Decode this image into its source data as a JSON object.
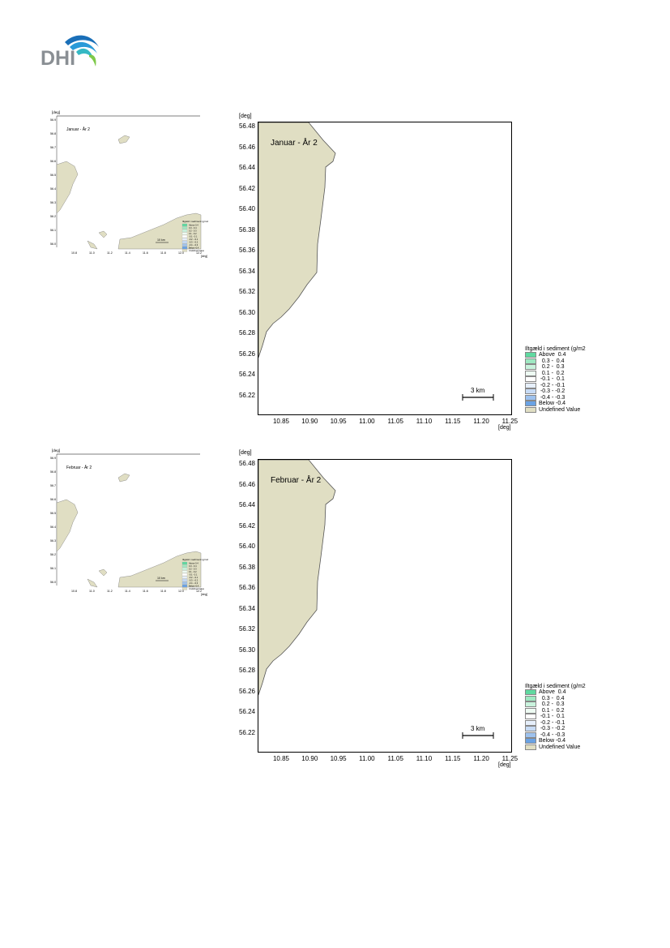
{
  "logo": {
    "text": "DHI",
    "icon": "dhi-wave-logo",
    "colors": [
      "#1a9ad6",
      "#36b3c8",
      "#7ec94a"
    ]
  },
  "land_color": "#e0dec3",
  "panels": [
    {
      "title": "Januar - År 2",
      "thumb_title": "Januar - År 2",
      "thumb_ylabel": "[deg]",
      "thumb_xlabel": "[deg]",
      "thumb_scale": "10 km",
      "ylabel": "[deg]",
      "xlabel": "[deg]",
      "yticks": [
        "56.48",
        "56.46",
        "56.44",
        "56.42",
        "56.40",
        "56.38",
        "56.36",
        "56.34",
        "56.32",
        "56.30",
        "56.28",
        "56.26",
        "56.24",
        "56.22"
      ],
      "xticks": [
        "10.85",
        "10.90",
        "10.95",
        "11.00",
        "11.05",
        "11.10",
        "11.15",
        "11.20",
        "11.25"
      ],
      "scale_label": "3 km"
    },
    {
      "title": "Februar - År 2",
      "thumb_title": "Februar - År 2",
      "thumb_ylabel": "[deg]",
      "thumb_xlabel": "[deg]",
      "thumb_scale": "10 km",
      "ylabel": "[deg]",
      "xlabel": "[deg]",
      "yticks": [
        "56.48",
        "56.46",
        "56.44",
        "56.42",
        "56.40",
        "56.38",
        "56.36",
        "56.34",
        "56.32",
        "56.30",
        "56.28",
        "56.26",
        "56.24",
        "56.22"
      ],
      "xticks": [
        "10.85",
        "10.90",
        "10.95",
        "11.00",
        "11.05",
        "11.10",
        "11.15",
        "11.20",
        "11.25"
      ],
      "scale_label": "3 km"
    }
  ],
  "legend": {
    "title": "Iltgæld i sediment (g/m2",
    "items": [
      {
        "label": "Above  0.4",
        "color": "#5fd9a0"
      },
      {
        "label": "  0.3 -  0.4",
        "color": "#9ee9c2"
      },
      {
        "label": "  0.2 -  0.3",
        "color": "#c9f3dd"
      },
      {
        "label": "  0.1 -  0.2",
        "color": "#eefbf3"
      },
      {
        "label": " -0.1 -  0.1",
        "color": "#ffffff"
      },
      {
        "label": " -0.2 - -0.1",
        "color": "#e6effb"
      },
      {
        "label": " -0.3 - -0.2",
        "color": "#c7dbf5"
      },
      {
        "label": " -0.4 - -0.3",
        "color": "#9ec2ee"
      },
      {
        "label": "Below -0.4",
        "color": "#6aa2e4"
      },
      {
        "label": "Undefined Value",
        "color": "#e0dec3"
      }
    ]
  },
  "thumb_yticks": [
    "56.9",
    "56.8",
    "56.7",
    "56.6",
    "56.5",
    "56.4",
    "56.3",
    "56.2",
    "56.1",
    "56.0"
  ],
  "thumb_xticks": [
    "10.8",
    "11.0",
    "11.2",
    "11.4",
    "11.6",
    "11.8",
    "12.0",
    "12.2"
  ]
}
